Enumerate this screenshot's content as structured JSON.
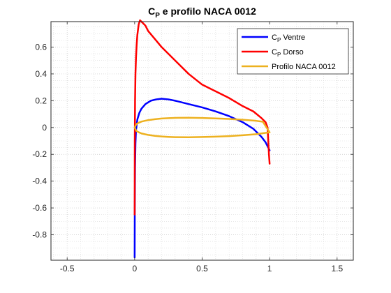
{
  "chart_data": {
    "type": "line",
    "title": {
      "main": "C",
      "sub": "P",
      "rest": " e profilo NACA 0012"
    },
    "xlabel": "",
    "ylabel": "",
    "xlim": [
      -0.62,
      1.62
    ],
    "ylim": [
      -0.99,
      0.79
    ],
    "xticks": [
      -0.5,
      0,
      0.5,
      1,
      1.5
    ],
    "xtick_labels": [
      "-0.5",
      "0",
      "0.5",
      "1",
      "1.5"
    ],
    "yticks": [
      0.6,
      0.4,
      0.2,
      0,
      -0.2,
      -0.4,
      -0.6,
      -0.8
    ],
    "ytick_labels": [
      "0.6",
      "0.4",
      "0.2",
      "0",
      "-0.2",
      "-0.4",
      "-0.6",
      "-0.8"
    ],
    "grid": true,
    "minor_grid": true,
    "legend_position": "top-right",
    "series": [
      {
        "name": {
          "main": "C",
          "sub": "P",
          "rest": " Ventre"
        },
        "color": "#0000ff",
        "x": [
          0.0,
          0.001,
          0.003,
          0.006,
          0.01,
          0.02,
          0.035,
          0.05,
          0.08,
          0.12,
          0.16,
          0.2,
          0.25,
          0.3,
          0.4,
          0.5,
          0.6,
          0.7,
          0.8,
          0.88,
          0.94,
          0.97,
          0.985,
          1.0
        ],
        "y": [
          -0.97,
          -0.6,
          -0.3,
          -0.12,
          -0.02,
          0.06,
          0.11,
          0.14,
          0.175,
          0.2,
          0.21,
          0.215,
          0.21,
          0.2,
          0.175,
          0.15,
          0.12,
          0.085,
          0.04,
          -0.01,
          -0.07,
          -0.11,
          -0.14,
          -0.17
        ]
      },
      {
        "name": {
          "main": "C",
          "sub": "P",
          "rest": " Dorso"
        },
        "color": "#ff0000",
        "x": [
          0.0,
          0.001,
          0.003,
          0.006,
          0.01,
          0.015,
          0.02,
          0.03,
          0.04,
          0.06,
          0.08,
          0.1,
          0.15,
          0.2,
          0.3,
          0.4,
          0.5,
          0.6,
          0.7,
          0.8,
          0.88,
          0.94,
          0.97,
          0.985,
          0.99,
          0.995,
          1.0
        ],
        "y": [
          -0.65,
          -0.1,
          0.2,
          0.4,
          0.52,
          0.62,
          0.69,
          0.77,
          0.8,
          0.78,
          0.76,
          0.72,
          0.66,
          0.6,
          0.5,
          0.4,
          0.32,
          0.27,
          0.22,
          0.16,
          0.12,
          0.07,
          0.04,
          0.0,
          -0.1,
          -0.2,
          -0.27
        ]
      },
      {
        "name": "Profilo NACA 0012",
        "color": "#edb120",
        "x": [
          1.0,
          0.95,
          0.9,
          0.8,
          0.7,
          0.6,
          0.5,
          0.4,
          0.3,
          0.25,
          0.2,
          0.15,
          0.1,
          0.075,
          0.05,
          0.025,
          0.0125,
          0.0,
          0.0125,
          0.025,
          0.05,
          0.075,
          0.1,
          0.15,
          0.2,
          0.25,
          0.3,
          0.4,
          0.5,
          0.6,
          0.7,
          0.8,
          0.9,
          0.95,
          1.0
        ],
        "y": [
          -0.036,
          -0.043,
          -0.05,
          -0.058,
          -0.064,
          -0.068,
          -0.071,
          -0.073,
          -0.072,
          -0.07,
          -0.067,
          -0.062,
          -0.055,
          -0.05,
          -0.044,
          -0.033,
          -0.025,
          0.0,
          0.025,
          0.033,
          0.044,
          0.05,
          0.055,
          0.062,
          0.067,
          0.07,
          0.072,
          0.073,
          0.071,
          0.068,
          0.064,
          0.058,
          0.05,
          0.043,
          -0.036
        ]
      }
    ]
  }
}
